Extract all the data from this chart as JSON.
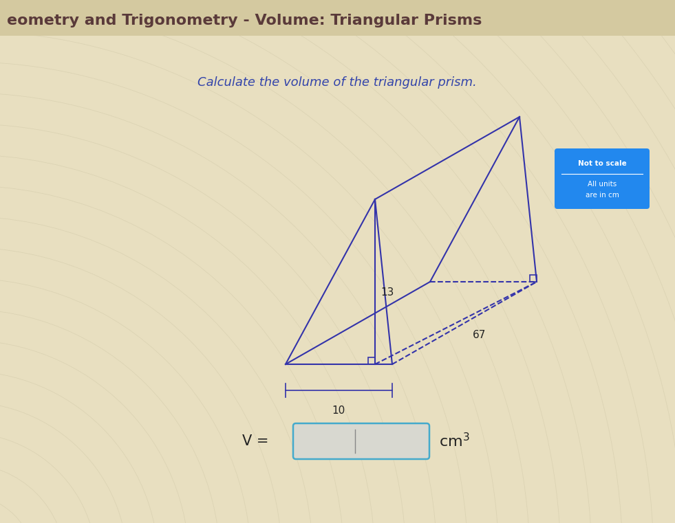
{
  "title": "eometry and Trigonometry - Volume: Triangular Prisms",
  "subtitle": "Calculate the volume of the triangular prism.",
  "bg_color_main": "#e8dfc0",
  "bg_color_title": "#e0d4b0",
  "title_color": "#5a3a3a",
  "subtitle_color": "#3344aa",
  "prism_color": "#3333aa",
  "label_13": "13",
  "label_67": "67",
  "label_10": "10",
  "note_box_color": "#2288ee",
  "note_line1": "Not to scale",
  "note_line2": "All units",
  "note_line3": "are in cm",
  "input_box_label": "V =",
  "title_fontsize": 16,
  "subtitle_fontsize": 13,
  "dim_fontsize": 11
}
